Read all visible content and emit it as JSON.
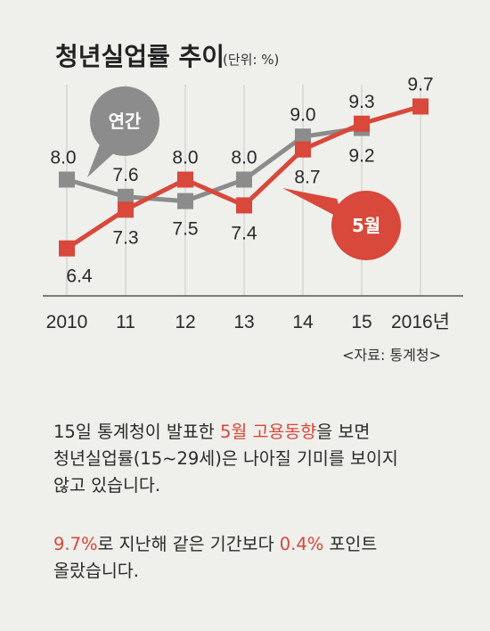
{
  "chart_data": {
    "type": "line",
    "title": "청년실업률 추이",
    "unit": "(단위: %)",
    "source": "<자료: 통계청>",
    "categories": [
      "2010",
      "11",
      "12",
      "13",
      "14",
      "15",
      "2016년"
    ],
    "series": [
      {
        "name": "연간",
        "color": "#8c8c8c",
        "values": [
          8.0,
          7.6,
          7.5,
          8.0,
          9.0,
          9.2,
          null
        ]
      },
      {
        "name": "5월",
        "color": "#d8483b",
        "values": [
          6.4,
          7.3,
          8.0,
          7.4,
          8.7,
          9.3,
          9.7
        ]
      }
    ],
    "labels": {
      "annual": [
        "8.0",
        "7.6",
        "7.5",
        "8.0",
        "9.0",
        "9.2"
      ],
      "may": [
        "6.4",
        "7.3",
        "8.0",
        "7.4",
        "8.7",
        "9.3",
        "9.7"
      ]
    },
    "ylim": [
      6.0,
      10.0
    ],
    "grid": "vertical"
  },
  "text": {
    "p1_a": "15일 통계청이 발표한 ",
    "p1_hl": "5월 고용동향",
    "p1_b": "을 보면",
    "p1_line2": "청년실업률(15~29세)은 나아질 기미를 보이지",
    "p1_line3": "않고 있습니다.",
    "p2_hl1": "9.7%",
    "p2_a": "로 지난해 같은 기간보다 ",
    "p2_hl2": "0.4%",
    "p2_b": " 포인트",
    "p2_line2": "올랐습니다."
  }
}
